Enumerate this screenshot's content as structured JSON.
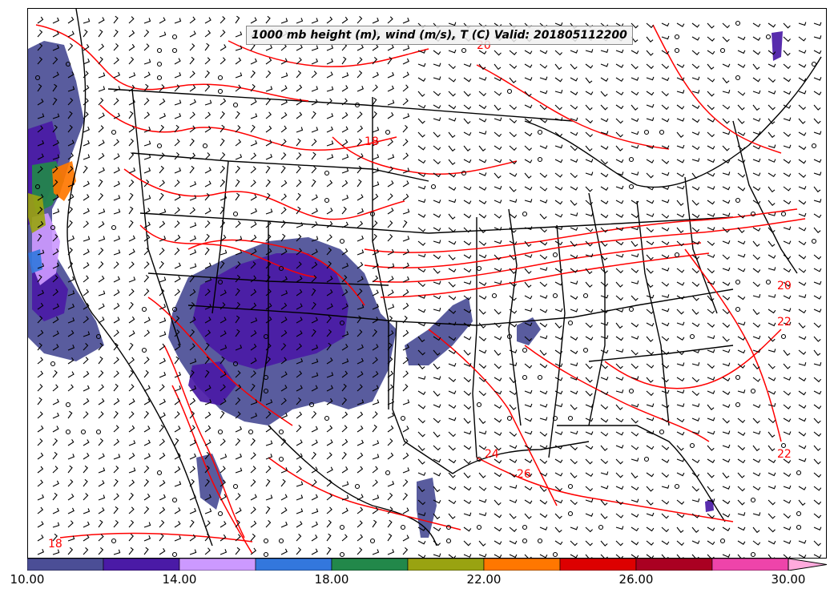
{
  "title": "1000 mb height (m), wind (m/s), T (C) Valid: 201805112200",
  "colorbar": {
    "bins": [
      {
        "from": 10,
        "to": 12,
        "color": "#4b4e96"
      },
      {
        "from": 12,
        "to": 14,
        "color": "#4a1aa6"
      },
      {
        "from": 14,
        "to": 16,
        "color": "#cc99ff"
      },
      {
        "from": 16,
        "to": 18,
        "color": "#3377dd"
      },
      {
        "from": 18,
        "to": 20,
        "color": "#22884a"
      },
      {
        "from": 20,
        "to": 22,
        "color": "#99a311"
      },
      {
        "from": 22,
        "to": 24,
        "color": "#ff7700"
      },
      {
        "from": 24,
        "to": 26,
        "color": "#dd0000"
      },
      {
        "from": 26,
        "to": 28,
        "color": "#aa0022"
      },
      {
        "from": 28,
        "to": 30,
        "color": "#ee44aa"
      },
      {
        "from": 30,
        "to": null,
        "color": "#ffaadd"
      }
    ],
    "tick_labels": [
      "10.00",
      "14.00",
      "18.00",
      "22.00",
      "26.00",
      "30.00"
    ]
  },
  "contour_labels": [
    "18",
    "20",
    "22",
    "24",
    "26",
    "18",
    "20",
    "22"
  ]
}
